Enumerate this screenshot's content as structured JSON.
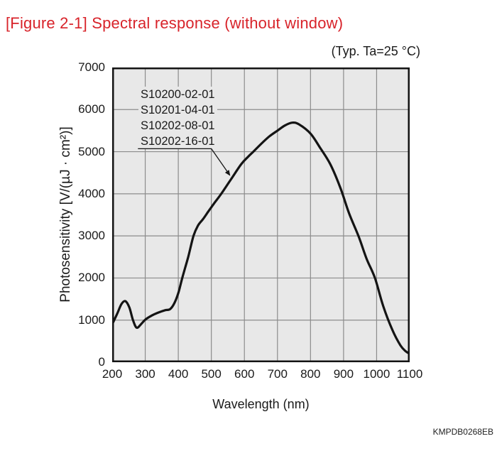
{
  "chart_data": {
    "type": "line",
    "title": "[Figure 2-1] Spectral response (without window)",
    "condition_label": "(Typ. Ta=25 °C)",
    "xlabel": "Wavelength (nm)",
    "ylabel": "Photosensitivity [V/(µJ · cm²)]",
    "watermark": "KMPDB0268EB",
    "xlim": [
      200,
      1100
    ],
    "ylim": [
      0,
      7000
    ],
    "xticks": [
      200,
      300,
      400,
      500,
      600,
      700,
      800,
      900,
      1000,
      1100
    ],
    "yticks": [
      0,
      1000,
      2000,
      3000,
      4000,
      5000,
      6000,
      7000
    ],
    "grid": true,
    "legend_position": "upper-left-inside",
    "series_labels": [
      "S10200-02-01",
      "S10201-04-01",
      "S10202-08-01",
      "S10202-16-01"
    ],
    "series": [
      {
        "name": "spectral-response-curve",
        "x": [
          200,
          215,
          228,
          240,
          252,
          263,
          274,
          287,
          300,
          320,
          340,
          360,
          375,
          388,
          400,
          412,
          430,
          446,
          460,
          475,
          490,
          510,
          530,
          560,
          590,
          610,
          627,
          650,
          675,
          700,
          722,
          745,
          765,
          800,
          830,
          860,
          890,
          917,
          945,
          970,
          995,
          1020,
          1048,
          1072,
          1088,
          1100
        ],
        "y": [
          900,
          1150,
          1380,
          1450,
          1300,
          1000,
          820,
          900,
          1010,
          1110,
          1180,
          1235,
          1260,
          1400,
          1640,
          2000,
          2500,
          3000,
          3250,
          3400,
          3570,
          3790,
          4000,
          4350,
          4700,
          4870,
          5000,
          5180,
          5360,
          5500,
          5620,
          5690,
          5650,
          5430,
          5080,
          4700,
          4150,
          3530,
          3000,
          2450,
          2000,
          1330,
          760,
          400,
          260,
          200
        ]
      }
    ],
    "annotation": {
      "leader_data_points": [
        [
          278,
          5070
        ],
        [
          500,
          5070
        ],
        [
          556,
          4440
        ]
      ],
      "arrowhead": true
    },
    "colors": {
      "title": "#d8232a",
      "curve": "#141414",
      "frame": "#141414",
      "plot_bg": "#e8e8e8",
      "grid": "#8c8c8c",
      "text": "#1a1a1a"
    }
  }
}
